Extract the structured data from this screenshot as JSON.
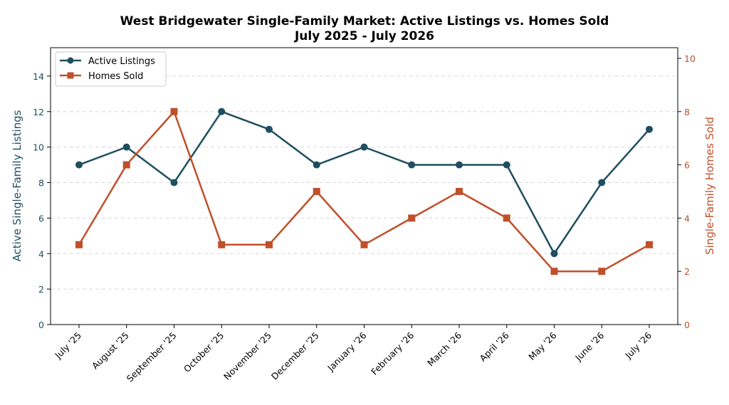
{
  "chart_data": {
    "type": "line",
    "title_line1": "West Bridgewater Single-Family Market: Active Listings vs. Homes Sold",
    "title_line2": "July 2025 - July 2026",
    "categories": [
      "July '25",
      "August '25",
      "September '25",
      "October '25",
      "November '25",
      "December '25",
      "January '26",
      "February '26",
      "March '26",
      "April '26",
      "May '26",
      "June '26",
      "July '26"
    ],
    "series": [
      {
        "name": "Active Listings",
        "axis": "left",
        "color": "#1f4e5f",
        "marker": "circle",
        "values": [
          9,
          10,
          8,
          12,
          11,
          9,
          10,
          9,
          9,
          9,
          4,
          8,
          11
        ]
      },
      {
        "name": "Homes Sold",
        "axis": "right",
        "color": "#c0502a",
        "marker": "square",
        "values": [
          3,
          6,
          8,
          3,
          3,
          5,
          3,
          4,
          5,
          4,
          2,
          2,
          3
        ]
      }
    ],
    "ylabel_left": "Active Single-Family Listings",
    "ylabel_right": "Single-Family Homes Sold",
    "ylim_left": [
      0,
      15.6
    ],
    "ylim_right": [
      0,
      10.4
    ],
    "yticks_left": [
      "0",
      "2",
      "4",
      "6",
      "8",
      "10",
      "12",
      "14"
    ],
    "yticks_right": [
      "0",
      "2",
      "4",
      "6",
      "8",
      "10"
    ],
    "grid": "horizontal dashed",
    "legend_position": "top-left"
  }
}
